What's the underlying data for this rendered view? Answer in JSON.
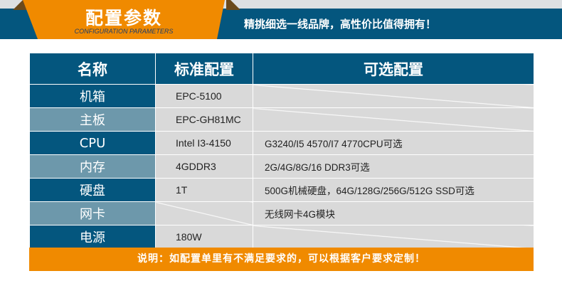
{
  "header": {
    "title": "配置参数",
    "subtitle": "CONFIGURATION PARAMETERS",
    "slogan": "精挑细选一线品牌，高性价比值得拥有！"
  },
  "table": {
    "columns": [
      "名称",
      "标准配置",
      "可选配置"
    ],
    "rows": [
      {
        "name": "机箱",
        "standard": "EPC-5100",
        "optional": ""
      },
      {
        "name": "主板",
        "standard": "EPC-GH81MC",
        "optional": ""
      },
      {
        "name": "CPU",
        "standard": "Intel I3-4150",
        "optional": "G3240/I5 4570/I7 4770CPU可选"
      },
      {
        "name": "内存",
        "standard": "4GDDR3",
        "optional": "2G/4G/8G/16 DDR3可选"
      },
      {
        "name": "硬盘",
        "standard": "1T",
        "optional": "500G机械硬盘，64G/128G/256G/512G SSD可选"
      },
      {
        "name": "网卡",
        "standard": "",
        "optional": "无线网卡4G模块"
      },
      {
        "name": "电源",
        "standard": "180W",
        "optional": ""
      }
    ]
  },
  "note": "说明：如配置单里有不满足要求的，可以根据客户要求定制！",
  "colors": {
    "dark_blue": "#04567e",
    "light_blue": "#6d98ab",
    "orange": "#f08a00",
    "cell_gray": "#d9d9d9"
  }
}
